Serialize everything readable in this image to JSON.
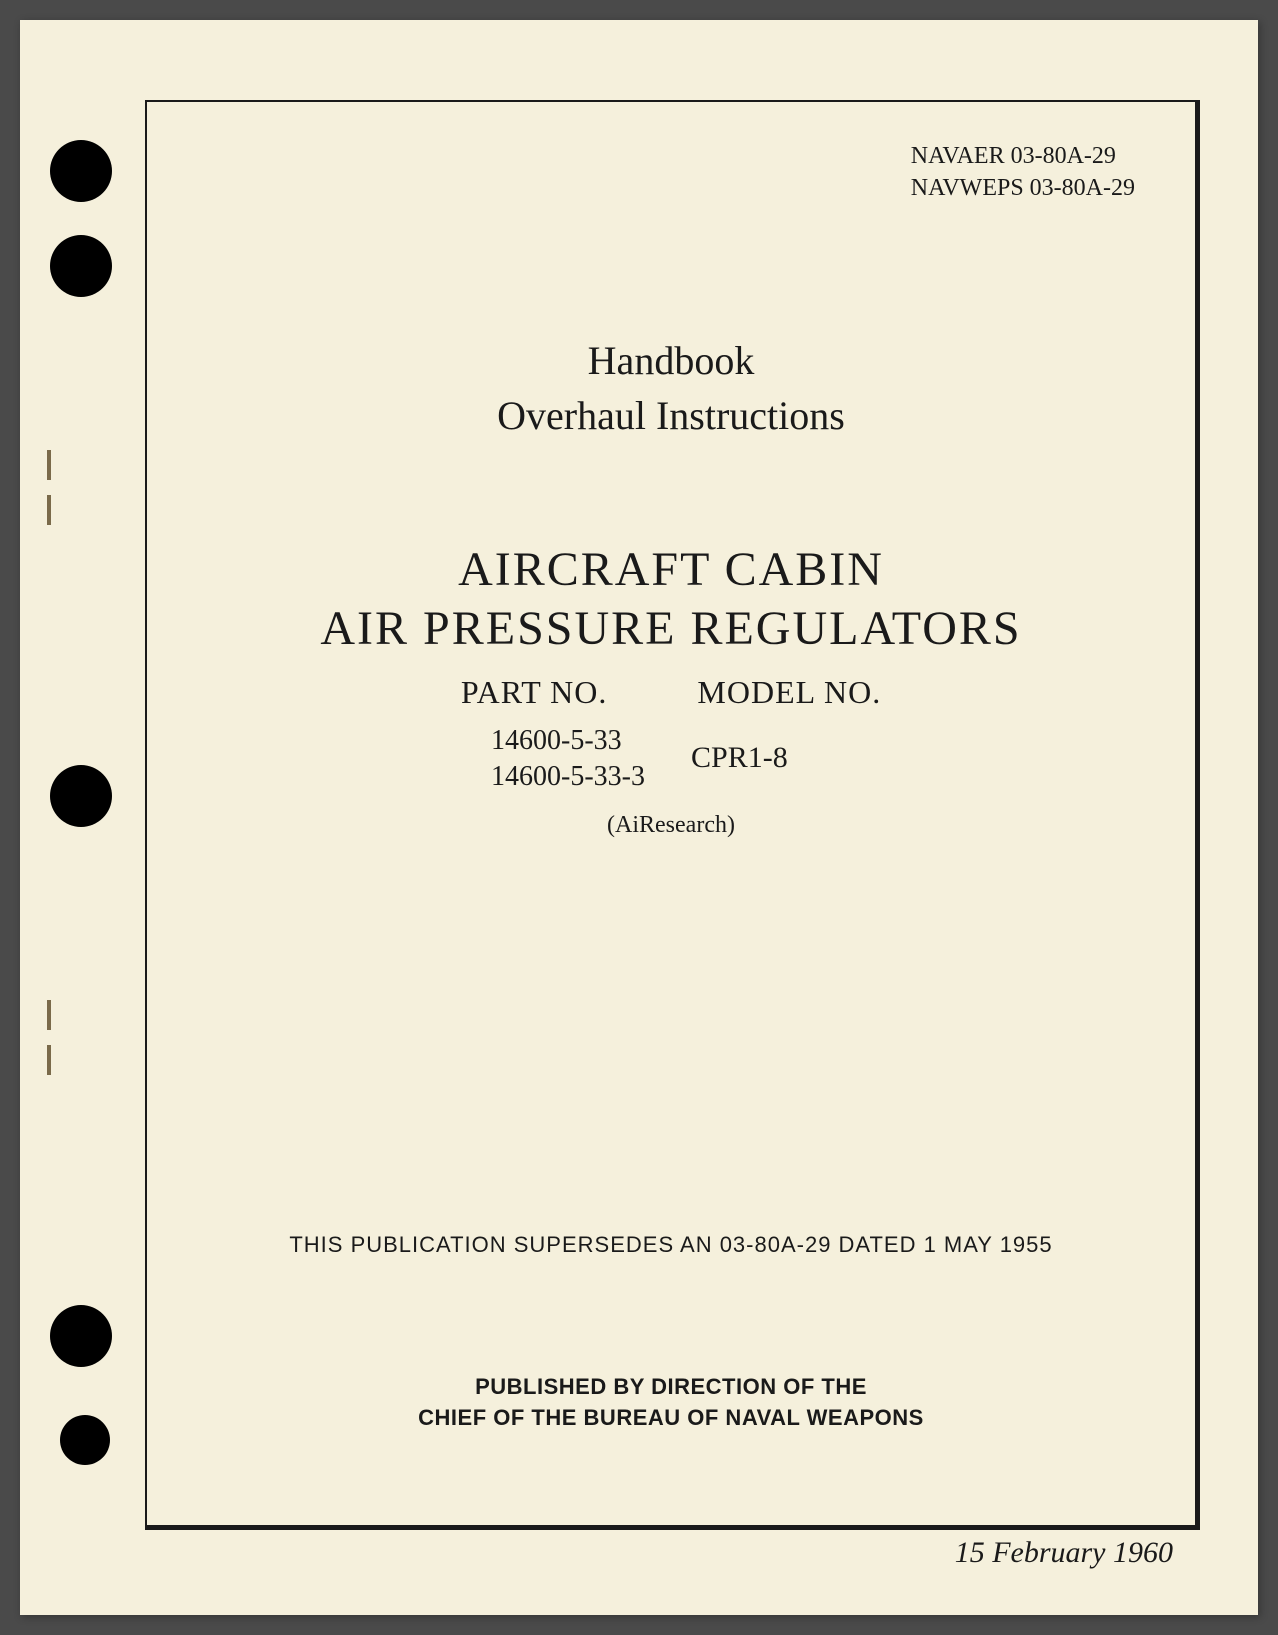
{
  "doc_numbers": {
    "line1": "NAVAER 03-80A-29",
    "line2": "NAVWEPS 03-80A-29"
  },
  "title": {
    "handbook": "Handbook",
    "overhaul": "Overhaul Instructions"
  },
  "main_title": {
    "line1": "AIRCRAFT CABIN",
    "line2": "AIR PRESSURE REGULATORS"
  },
  "headers": {
    "part_no": "PART NO.",
    "model_no": "MODEL NO."
  },
  "parts": {
    "part1": "14600-5-33",
    "part2": "14600-5-33-3",
    "model": "CPR1-8"
  },
  "manufacturer": "(AiResearch)",
  "supersedes": "THIS PUBLICATION SUPERSEDES AN 03-80A-29 DATED 1 MAY 1955",
  "publisher": {
    "line1": "PUBLISHED BY DIRECTION OF THE",
    "line2": "CHIEF OF THE BUREAU OF NAVAL WEAPONS"
  },
  "date": "15 February 1960",
  "colors": {
    "page_bg": "#f5f0dc",
    "text": "#1a1a1a",
    "body_bg": "#4a4a4a",
    "staple": "#7a6a4a"
  }
}
